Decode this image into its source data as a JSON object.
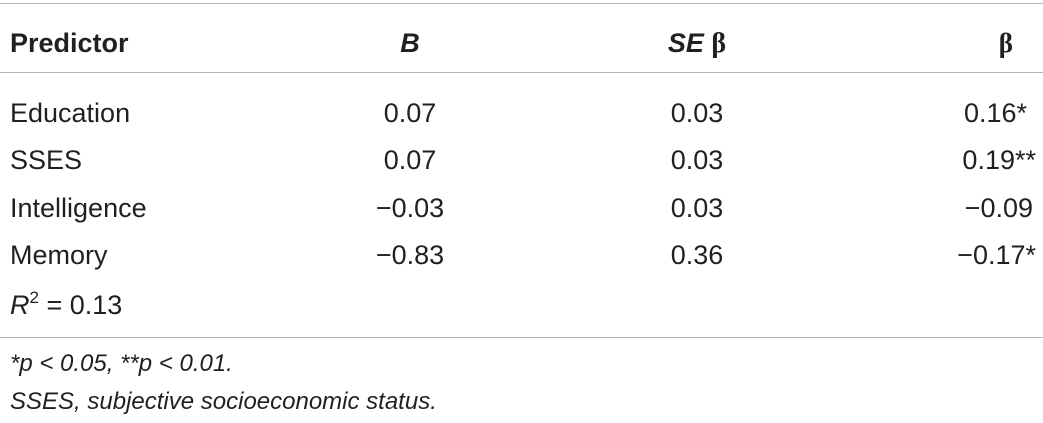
{
  "table": {
    "headers": {
      "predictor": "Predictor",
      "b": "B",
      "se_prefix": "SE",
      "se_symbol": "β",
      "beta": "β"
    },
    "rows": [
      {
        "predictor": "Education",
        "b": "0.07",
        "se": "0.03",
        "beta": "0.16*"
      },
      {
        "predictor": "SSES",
        "b": "0.07",
        "se": "0.03",
        "beta": "0.19**"
      },
      {
        "predictor": "Intelligence",
        "b": "−0.03",
        "se": "0.03",
        "beta": "−0.09"
      },
      {
        "predictor": "Memory",
        "b": "−0.83",
        "se": "0.36",
        "beta": "−0.17*"
      }
    ],
    "r_squared": {
      "symbol": "R",
      "exponent": "2",
      "value": "= 0.13"
    }
  },
  "notes": {
    "significance": "*p < 0.05, **p < 0.01.",
    "abbreviation": "SSES, subjective socioeconomic status."
  }
}
